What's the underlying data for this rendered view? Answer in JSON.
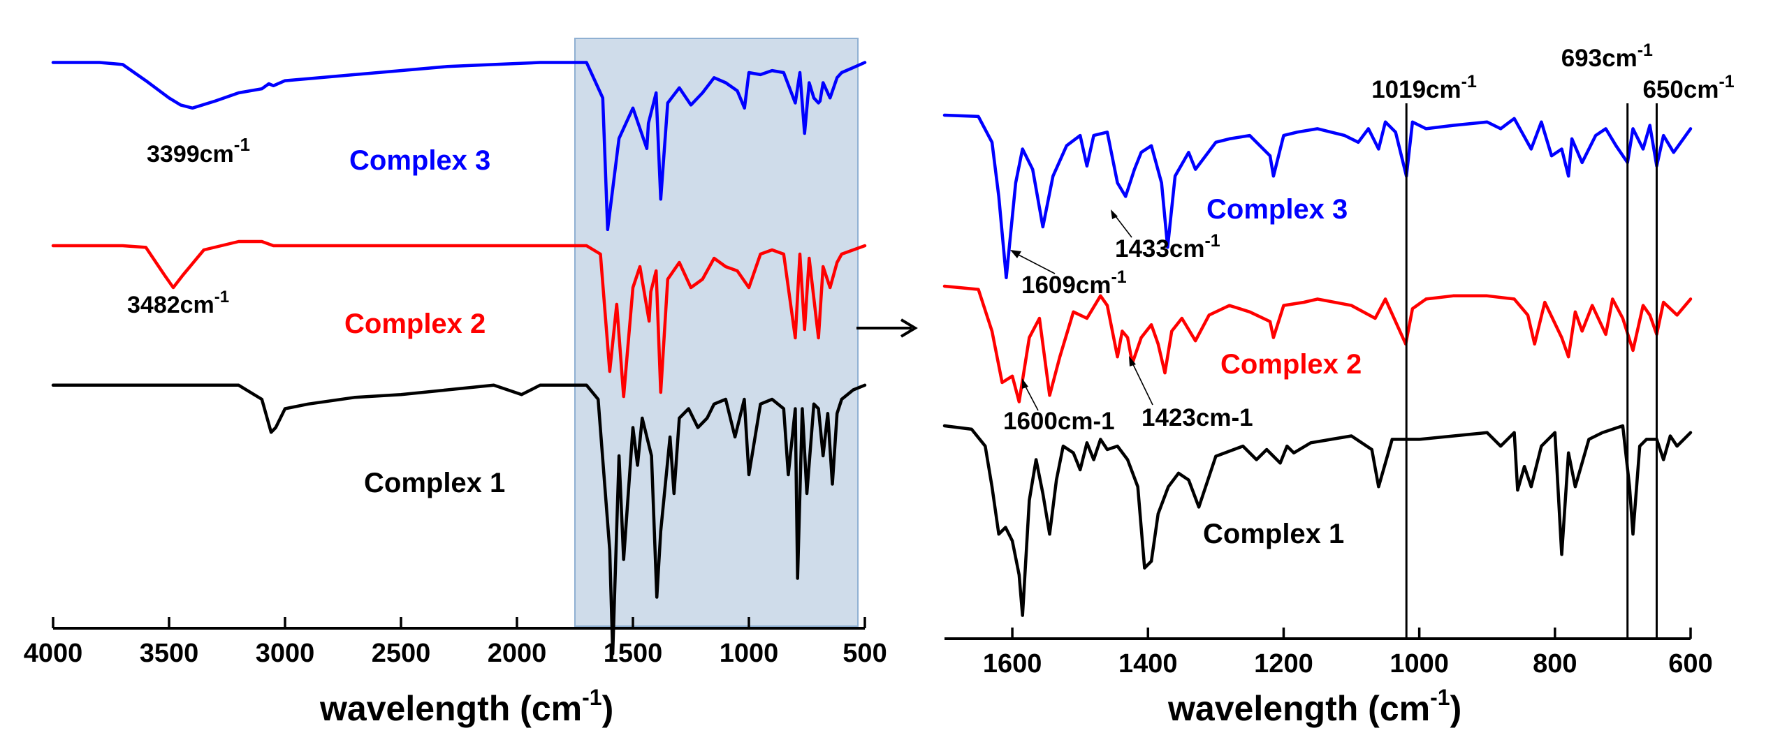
{
  "chart_data": [
    {
      "type": "line",
      "title": "",
      "xlabel": "wavelength (cm",
      "xlabel_sup": "-1",
      "xlabel_suffix": ")",
      "ylabel": "",
      "xlim": [
        4000,
        500
      ],
      "ticks": [
        4000,
        3500,
        3000,
        2500,
        2000,
        1500,
        1000,
        500
      ],
      "highlight_region": [
        1750,
        530
      ],
      "annotations": [
        {
          "id": "a3399",
          "text": "3399cm",
          "sup": "-1"
        },
        {
          "id": "a3482",
          "text": "3482cm",
          "sup": "-1"
        }
      ],
      "series": [
        {
          "name": "Complex 3",
          "color": "#0000ff",
          "baseline": 0.1,
          "x": [
            4000,
            3800,
            3700,
            3600,
            3500,
            3450,
            3399,
            3300,
            3200,
            3100,
            3070,
            3050,
            3000,
            2900,
            2700,
            2500,
            2300,
            2100,
            1900,
            1800,
            1700,
            1630,
            1609,
            1560,
            1500,
            1440,
            1433,
            1400,
            1380,
            1350,
            1300,
            1250,
            1200,
            1150,
            1100,
            1050,
            1019,
            1000,
            950,
            900,
            850,
            800,
            780,
            760,
            740,
            720,
            700,
            693,
            680,
            650,
            620,
            600,
            550,
            500
          ],
          "y": [
            0.1,
            0.1,
            0.12,
            0.28,
            0.45,
            0.52,
            0.55,
            0.48,
            0.4,
            0.36,
            0.31,
            0.33,
            0.28,
            0.26,
            0.22,
            0.18,
            0.14,
            0.12,
            0.1,
            0.1,
            0.1,
            0.45,
            1.75,
            0.85,
            0.55,
            0.95,
            0.7,
            0.4,
            1.45,
            0.5,
            0.35,
            0.52,
            0.4,
            0.25,
            0.3,
            0.38,
            0.55,
            0.2,
            0.22,
            0.18,
            0.2,
            0.5,
            0.2,
            0.8,
            0.3,
            0.45,
            0.5,
            0.48,
            0.3,
            0.45,
            0.25,
            0.2,
            0.15,
            0.1
          ]
        },
        {
          "name": "Complex 2",
          "color": "#ff0000",
          "baseline": 0.1,
          "x": [
            4000,
            3700,
            3600,
            3520,
            3482,
            3440,
            3350,
            3200,
            3100,
            3050,
            3000,
            2800,
            2500,
            2200,
            1900,
            1700,
            1640,
            1600,
            1570,
            1540,
            1500,
            1470,
            1430,
            1423,
            1400,
            1380,
            1350,
            1300,
            1250,
            1200,
            1150,
            1100,
            1050,
            1000,
            950,
            900,
            850,
            800,
            780,
            760,
            740,
            700,
            680,
            650,
            620,
            600,
            550,
            500
          ],
          "y": [
            0.1,
            0.1,
            0.12,
            0.45,
            0.6,
            0.45,
            0.15,
            0.05,
            0.05,
            0.1,
            0.1,
            0.1,
            0.1,
            0.1,
            0.1,
            0.1,
            0.2,
            1.6,
            0.8,
            1.9,
            0.6,
            0.35,
            1.0,
            0.65,
            0.4,
            1.85,
            0.5,
            0.3,
            0.6,
            0.5,
            0.25,
            0.35,
            0.4,
            0.6,
            0.2,
            0.15,
            0.2,
            1.2,
            0.2,
            1.1,
            0.25,
            1.2,
            0.35,
            0.6,
            0.3,
            0.2,
            0.15,
            0.1
          ]
        },
        {
          "name": "Complex 1",
          "color": "#000000",
          "baseline": 0.1,
          "x": [
            4000,
            3600,
            3300,
            3200,
            3100,
            3060,
            3040,
            3000,
            2900,
            2700,
            2500,
            2300,
            2100,
            1980,
            1900,
            1750,
            1700,
            1650,
            1600,
            1587,
            1560,
            1540,
            1500,
            1480,
            1460,
            1420,
            1397,
            1380,
            1340,
            1323,
            1300,
            1260,
            1220,
            1180,
            1150,
            1100,
            1060,
            1020,
            1000,
            950,
            900,
            850,
            830,
            800,
            790,
            770,
            750,
            720,
            700,
            680,
            660,
            640,
            620,
            600,
            550,
            500
          ],
          "y": [
            0.05,
            0.05,
            0.05,
            0.05,
            0.2,
            0.55,
            0.5,
            0.3,
            0.25,
            0.18,
            0.15,
            0.1,
            0.05,
            0.15,
            0.05,
            0.05,
            0.05,
            0.2,
            1.8,
            2.9,
            0.8,
            1.9,
            0.5,
            0.9,
            0.4,
            0.8,
            2.3,
            1.6,
            0.6,
            1.2,
            0.4,
            0.3,
            0.5,
            0.4,
            0.25,
            0.2,
            0.6,
            0.2,
            1.0,
            0.25,
            0.2,
            0.3,
            1.0,
            0.3,
            2.1,
            0.3,
            1.2,
            0.25,
            0.3,
            0.8,
            0.35,
            1.1,
            0.35,
            0.2,
            0.1,
            0.05
          ]
        }
      ]
    },
    {
      "type": "line",
      "title": "",
      "xlabel": "wavelength (cm",
      "xlabel_sup": "-1",
      "xlabel_suffix": ")",
      "ylabel": "",
      "xlim": [
        1700,
        600
      ],
      "ticks": [
        1600,
        1400,
        1200,
        1000,
        800,
        600
      ],
      "reference_lines": [
        {
          "x": 1019,
          "text": "1019cm",
          "sup": "-1"
        },
        {
          "x": 693,
          "text": "693cm",
          "sup": "-1"
        },
        {
          "x": 650,
          "text": "650cm",
          "sup": "-1"
        }
      ],
      "annotations": [
        {
          "id": "a1609",
          "text": "1609cm",
          "sup": "-1"
        },
        {
          "id": "a1433",
          "text": "1433cm",
          "sup": "-1"
        },
        {
          "id": "a1600",
          "text": "1600cm-1"
        },
        {
          "id": "a1423",
          "text": "1423cm-1"
        }
      ],
      "series": [
        {
          "name": "Complex 3",
          "color": "#0000ff",
          "x": [
            1700,
            1650,
            1630,
            1620,
            1609,
            1595,
            1585,
            1570,
            1555,
            1540,
            1520,
            1500,
            1490,
            1480,
            1460,
            1445,
            1433,
            1420,
            1410,
            1395,
            1380,
            1371,
            1360,
            1340,
            1330,
            1300,
            1280,
            1250,
            1220,
            1215,
            1200,
            1180,
            1150,
            1110,
            1090,
            1075,
            1060,
            1050,
            1035,
            1019,
            1010,
            990,
            950,
            900,
            880,
            860,
            835,
            820,
            805,
            790,
            780,
            775,
            760,
            740,
            725,
            710,
            693,
            685,
            670,
            660,
            650,
            640,
            625,
            600
          ],
          "y": [
            0.0,
            0.02,
            0.4,
            1.2,
            2.4,
            1.0,
            0.5,
            0.8,
            1.65,
            0.9,
            0.45,
            0.3,
            0.75,
            0.3,
            0.25,
            1.0,
            1.2,
            0.8,
            0.55,
            0.45,
            1.0,
            1.95,
            0.9,
            0.55,
            0.8,
            0.4,
            0.35,
            0.3,
            0.6,
            0.9,
            0.3,
            0.25,
            0.2,
            0.3,
            0.4,
            0.2,
            0.5,
            0.1,
            0.25,
            0.9,
            0.1,
            0.2,
            0.15,
            0.1,
            0.2,
            0.05,
            0.5,
            0.1,
            0.6,
            0.5,
            0.9,
            0.35,
            0.7,
            0.3,
            0.2,
            0.45,
            0.7,
            0.2,
            0.5,
            0.15,
            0.75,
            0.3,
            0.55,
            0.2
          ]
        },
        {
          "name": "Complex 2",
          "color": "#ff0000",
          "x": [
            1700,
            1650,
            1630,
            1615,
            1600,
            1590,
            1575,
            1560,
            1545,
            1530,
            1510,
            1490,
            1470,
            1460,
            1445,
            1438,
            1430,
            1423,
            1410,
            1395,
            1385,
            1375,
            1365,
            1350,
            1330,
            1310,
            1280,
            1250,
            1220,
            1215,
            1200,
            1170,
            1150,
            1100,
            1065,
            1050,
            1020,
            1010,
            990,
            950,
            900,
            860,
            840,
            830,
            815,
            790,
            780,
            770,
            760,
            745,
            725,
            715,
            700,
            685,
            670,
            660,
            650,
            640,
            620,
            600
          ],
          "y": [
            0.0,
            0.05,
            0.7,
            1.5,
            1.4,
            1.8,
            0.8,
            0.5,
            1.7,
            1.1,
            0.4,
            0.5,
            0.15,
            0.3,
            1.1,
            0.7,
            0.8,
            1.2,
            0.8,
            0.6,
            0.9,
            1.35,
            0.7,
            0.5,
            0.85,
            0.45,
            0.3,
            0.4,
            0.55,
            0.8,
            0.3,
            0.25,
            0.2,
            0.3,
            0.5,
            0.2,
            0.9,
            0.35,
            0.2,
            0.15,
            0.15,
            0.2,
            0.45,
            0.9,
            0.25,
            0.8,
            1.1,
            0.4,
            0.7,
            0.3,
            0.75,
            0.2,
            0.5,
            1.0,
            0.3,
            0.45,
            0.75,
            0.25,
            0.45,
            0.2
          ]
        },
        {
          "name": "Complex 1",
          "color": "#000000",
          "x": [
            1700,
            1660,
            1640,
            1630,
            1620,
            1610,
            1600,
            1590,
            1585,
            1575,
            1565,
            1555,
            1545,
            1535,
            1525,
            1510,
            1500,
            1490,
            1480,
            1470,
            1460,
            1445,
            1430,
            1415,
            1405,
            1395,
            1385,
            1370,
            1355,
            1340,
            1325,
            1300,
            1260,
            1240,
            1225,
            1205,
            1195,
            1185,
            1160,
            1100,
            1070,
            1060,
            1040,
            1000,
            900,
            880,
            860,
            855,
            845,
            835,
            820,
            800,
            790,
            780,
            770,
            750,
            730,
            700,
            690,
            685,
            675,
            665,
            650,
            640,
            630,
            620,
            600
          ],
          "y": [
            0.0,
            0.05,
            0.3,
            0.9,
            1.6,
            1.5,
            1.7,
            2.2,
            2.8,
            1.1,
            0.5,
            1.0,
            1.6,
            0.8,
            0.3,
            0.4,
            0.65,
            0.25,
            0.5,
            0.2,
            0.35,
            0.3,
            0.5,
            0.9,
            2.1,
            2.0,
            1.3,
            0.9,
            0.7,
            0.8,
            1.2,
            0.45,
            0.3,
            0.5,
            0.35,
            0.55,
            0.3,
            0.4,
            0.25,
            0.15,
            0.35,
            0.9,
            0.2,
            0.2,
            0.1,
            0.3,
            0.1,
            0.95,
            0.6,
            0.9,
            0.3,
            0.1,
            1.9,
            0.4,
            0.9,
            0.2,
            0.1,
            0.0,
            0.9,
            1.6,
            0.3,
            0.2,
            0.2,
            0.5,
            0.15,
            0.3,
            0.1
          ]
        }
      ]
    }
  ]
}
